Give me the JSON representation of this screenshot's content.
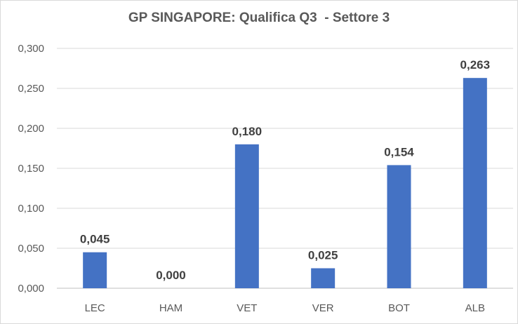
{
  "chart_data": {
    "type": "bar",
    "title": "GP SINGAPORE: Qualifica Q3  - Settore 3",
    "xlabel": "",
    "ylabel": "",
    "categories": [
      "LEC",
      "HAM",
      "VET",
      "VER",
      "BOT",
      "ALB"
    ],
    "values": [
      0.045,
      0.0,
      0.18,
      0.025,
      0.154,
      0.263
    ],
    "value_labels": [
      "0,045",
      "0,000",
      "0,180",
      "0,025",
      "0,154",
      "0,263"
    ],
    "ylim": [
      0,
      0.3
    ],
    "yticks": [
      0,
      0.05,
      0.1,
      0.15,
      0.2,
      0.25,
      0.3
    ],
    "ytick_labels": [
      "0,000",
      "0,050",
      "0,100",
      "0,150",
      "0,200",
      "0,250",
      "0,300"
    ],
    "grid": true,
    "legend": "none",
    "colors": {
      "bar": "#4472c4",
      "grid": "#d9d9d9",
      "axis": "#bfbfbf"
    }
  }
}
